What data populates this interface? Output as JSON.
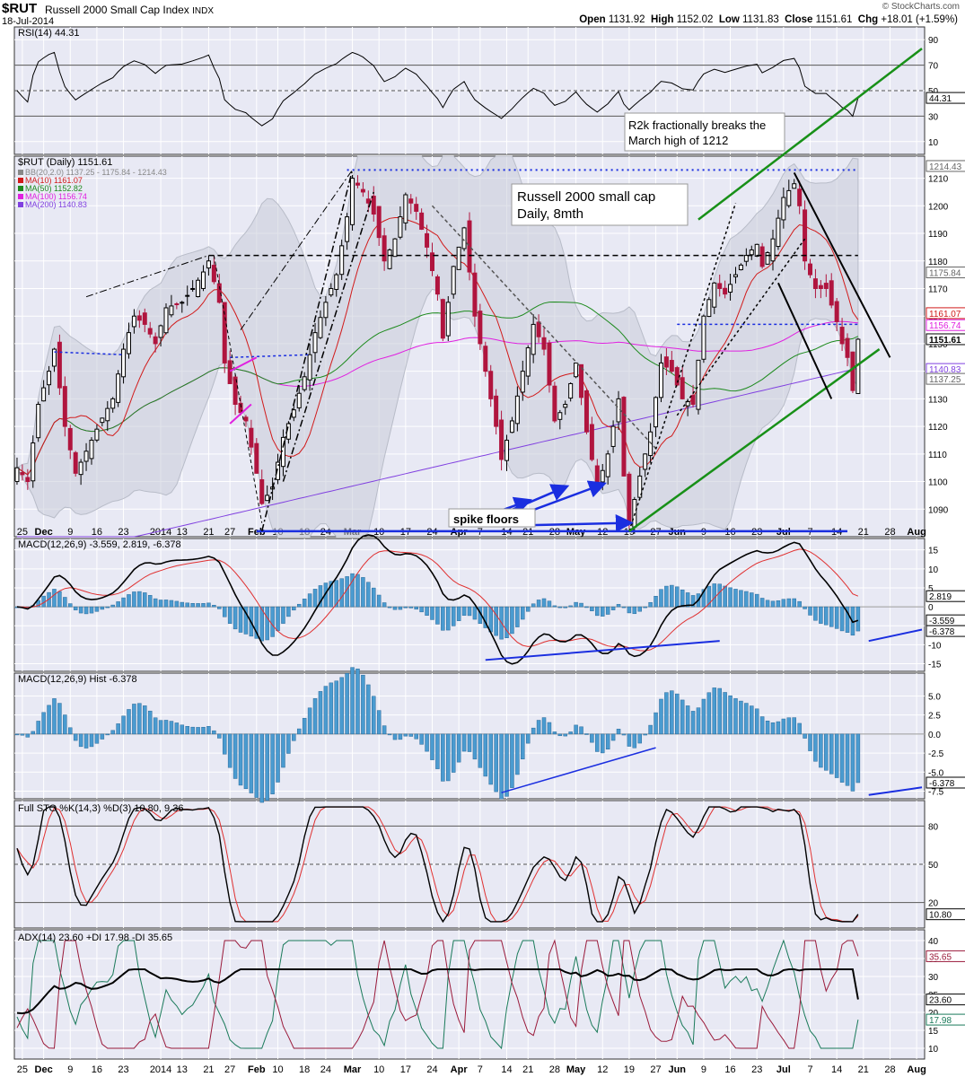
{
  "header": {
    "symbol": "$RUT",
    "name": "Russell 2000 Small Cap Index",
    "exchange": "INDX",
    "date": "18-Jul-2014",
    "open_label": "Open",
    "open": "1131.92",
    "high_label": "High",
    "high": "1152.02",
    "low_label": "Low",
    "low": "1131.83",
    "close_label": "Close",
    "close": "1151.61",
    "chg_label": "Chg",
    "chg": "+18.01 (+1.59%)",
    "watermark": "© StockCharts.com"
  },
  "colors": {
    "bg": "#ffffff",
    "panel_bg": "#e8e9f4",
    "grid": "#ffffff",
    "frame": "#333333",
    "candle_up": "#000000",
    "candle_down": "#b0153e",
    "ma10": "#d11a1a",
    "ma50": "#1d8a1d",
    "ma100": "#e020e0",
    "ma200": "#8040e0",
    "bb": "#c8ccd8",
    "hist": "#4a9bd0",
    "macd_line": "#000000",
    "signal": "#e03030",
    "adx_plus": "#1a7a5a",
    "adx_minus": "#9a1a3a",
    "annotation_blue": "#1a2ee0",
    "channel": "#189018",
    "black": "#000000"
  },
  "x_axis": {
    "labels": [
      {
        "i": 1,
        "t": "25"
      },
      {
        "i": 5,
        "t": "Dec"
      },
      {
        "i": 10,
        "t": "9"
      },
      {
        "i": 15,
        "t": "16"
      },
      {
        "i": 20,
        "t": "23"
      },
      {
        "i": 27,
        "t": "2014"
      },
      {
        "i": 31,
        "t": "13"
      },
      {
        "i": 36,
        "t": "21"
      },
      {
        "i": 40,
        "t": "27"
      },
      {
        "i": 45,
        "t": "Feb"
      },
      {
        "i": 49,
        "t": "10"
      },
      {
        "i": 54,
        "t": "18"
      },
      {
        "i": 58,
        "t": "24"
      },
      {
        "i": 63,
        "t": "Mar"
      },
      {
        "i": 68,
        "t": "10"
      },
      {
        "i": 73,
        "t": "17"
      },
      {
        "i": 78,
        "t": "24"
      },
      {
        "i": 83,
        "t": "Apr"
      },
      {
        "i": 87,
        "t": "7"
      },
      {
        "i": 92,
        "t": "14"
      },
      {
        "i": 96,
        "t": "21"
      },
      {
        "i": 101,
        "t": "28"
      },
      {
        "i": 105,
        "t": "May"
      },
      {
        "i": 110,
        "t": "12"
      },
      {
        "i": 115,
        "t": "19"
      },
      {
        "i": 120,
        "t": "27"
      },
      {
        "i": 124,
        "t": "Jun"
      },
      {
        "i": 129,
        "t": "9"
      },
      {
        "i": 134,
        "t": "16"
      },
      {
        "i": 139,
        "t": "23"
      },
      {
        "i": 144,
        "t": "Jul"
      },
      {
        "i": 149,
        "t": "7"
      },
      {
        "i": 154,
        "t": "14"
      },
      {
        "i": 159,
        "t": "21"
      },
      {
        "i": 164,
        "t": "28"
      },
      {
        "i": 169,
        "t": "Aug"
      }
    ]
  },
  "panels": {
    "rsi": {
      "legend": "RSI(14) 44.31",
      "ticks": [
        "90",
        "70",
        "50",
        "30",
        "10"
      ],
      "value_tag": "44.31"
    },
    "price": {
      "legend_title": "$RUT (Daily) 1151.61",
      "legend_items": [
        {
          "text": "BB(20,2.0) 1137.25 - 1175.84 - 1214.43",
          "color": "#888888"
        },
        {
          "text": "MA(10) 1161.07",
          "color": "#d11a1a"
        },
        {
          "text": "MA(50) 1152.82",
          "color": "#1d8a1d"
        },
        {
          "text": "MA(100) 1156.74",
          "color": "#e020e0"
        },
        {
          "text": "MA(200) 1140.83",
          "color": "#8040e0"
        }
      ],
      "ticks": [
        "1210",
        "1200",
        "1190",
        "1180",
        "1170",
        "1160",
        "1150",
        "1140",
        "1130",
        "1120",
        "1110",
        "1100",
        "1090"
      ],
      "value_tags": [
        {
          "v": 1214.43,
          "t": "1214.43"
        },
        {
          "v": 1175.84,
          "t": "1175.84"
        },
        {
          "v": 1161.07,
          "t": "1161.07"
        },
        {
          "v": 1156.74,
          "t": "1156.74"
        },
        {
          "v": 1151.61,
          "t": "1151.61",
          "bold": true
        },
        {
          "v": 1140.83,
          "t": "1140.83"
        },
        {
          "v": 1137.25,
          "t": "1137.25"
        }
      ],
      "annotations": {
        "note1_line1": "R2k fractionally breaks the",
        "note1_line2": "March high of 1212",
        "note2_line1": "Russell 2000 small cap",
        "note2_line2": "Daily, 8mth",
        "spike": "spike floors"
      }
    },
    "macd": {
      "legend": "MACD(12,26,9) -3.559, 2.819, -6.378",
      "ticks": [
        "15",
        "10",
        "5",
        "0",
        "-5",
        "-10",
        "-15"
      ],
      "value_tags": [
        {
          "v": 2.819,
          "t": "2.819"
        },
        {
          "v": -3.559,
          "t": "-3.559"
        },
        {
          "v": -6.378,
          "t": "-6.378"
        }
      ]
    },
    "hist": {
      "legend": "MACD(12,26,9) Hist -6.378",
      "ticks": [
        "5.0",
        "2.5",
        "0.0",
        "-2.5",
        "-5.0",
        "-7.5"
      ],
      "value_tag": "-6.378"
    },
    "sto": {
      "legend": "Full STO %K(14,3) %D(3) 10.80, 9.36",
      "ticks": [
        "80",
        "50",
        "20"
      ],
      "value_tag": "10.80"
    },
    "adx": {
      "legend": "ADX(14) 23.60 +DI 17.98 -DI 35.65",
      "ticks": [
        "40",
        "35",
        "30",
        "25",
        "20",
        "15",
        "10"
      ],
      "value_tags": [
        {
          "v": 35.65,
          "t": "35.65"
        },
        {
          "v": 23.6,
          "t": "23.60"
        },
        {
          "v": 17.98,
          "t": "17.98"
        }
      ]
    }
  },
  "chart_data": {
    "type": "candlestick",
    "title": "$RUT Russell 2000 Small Cap Index INDX (Daily)",
    "period": "approx. 22-Nov-2013 to 18-Jul-2014",
    "n_bars": 159,
    "price_ylim": [
      1080,
      1218
    ],
    "anchors_close": [
      [
        0,
        1105
      ],
      [
        2,
        1100
      ],
      [
        4,
        1128
      ],
      [
        6,
        1140
      ],
      [
        7,
        1148
      ],
      [
        9,
        1120
      ],
      [
        11,
        1103
      ],
      [
        14,
        1115
      ],
      [
        16,
        1123
      ],
      [
        18,
        1130
      ],
      [
        20,
        1148
      ],
      [
        22,
        1160
      ],
      [
        24,
        1157
      ],
      [
        26,
        1150
      ],
      [
        28,
        1163
      ],
      [
        31,
        1165
      ],
      [
        33,
        1170
      ],
      [
        35,
        1176
      ],
      [
        36,
        1180
      ],
      [
        38,
        1165
      ],
      [
        39,
        1143
      ],
      [
        41,
        1128
      ],
      [
        43,
        1122
      ],
      [
        45,
        1103
      ],
      [
        46,
        1092
      ],
      [
        48,
        1098
      ],
      [
        50,
        1116
      ],
      [
        52,
        1126
      ],
      [
        54,
        1138
      ],
      [
        56,
        1154
      ],
      [
        58,
        1165
      ],
      [
        60,
        1175
      ],
      [
        62,
        1196
      ],
      [
        63,
        1210
      ],
      [
        65,
        1205
      ],
      [
        67,
        1197
      ],
      [
        69,
        1180
      ],
      [
        71,
        1188
      ],
      [
        73,
        1204
      ],
      [
        75,
        1198
      ],
      [
        77,
        1185
      ],
      [
        79,
        1168
      ],
      [
        80,
        1152
      ],
      [
        82,
        1178
      ],
      [
        84,
        1192
      ],
      [
        86,
        1160
      ],
      [
        88,
        1140
      ],
      [
        90,
        1120
      ],
      [
        91,
        1108
      ],
      [
        93,
        1122
      ],
      [
        95,
        1140
      ],
      [
        97,
        1157
      ],
      [
        99,
        1148
      ],
      [
        101,
        1122
      ],
      [
        103,
        1128
      ],
      [
        105,
        1143
      ],
      [
        107,
        1118
      ],
      [
        109,
        1098
      ],
      [
        111,
        1110
      ],
      [
        113,
        1130
      ],
      [
        114,
        1102
      ],
      [
        115,
        1085
      ],
      [
        117,
        1102
      ],
      [
        119,
        1118
      ],
      [
        121,
        1143
      ],
      [
        123,
        1140
      ],
      [
        125,
        1130
      ],
      [
        127,
        1128
      ],
      [
        129,
        1160
      ],
      [
        131,
        1172
      ],
      [
        133,
        1168
      ],
      [
        135,
        1175
      ],
      [
        137,
        1182
      ],
      [
        139,
        1186
      ],
      [
        140,
        1178
      ],
      [
        142,
        1188
      ],
      [
        144,
        1203
      ],
      [
        146,
        1208
      ],
      [
        147,
        1200
      ],
      [
        148,
        1180
      ],
      [
        150,
        1170
      ],
      [
        152,
        1170
      ],
      [
        154,
        1158
      ],
      [
        155,
        1150
      ],
      [
        156,
        1145
      ],
      [
        157,
        1133
      ],
      [
        158,
        1152
      ]
    ],
    "last_bar": {
      "date": "18-Jul-2014",
      "open": 1131.92,
      "high": 1152.02,
      "low": 1131.83,
      "close": 1151.61
    },
    "indicators": {
      "MA(10)": 1161.07,
      "MA(50)": 1152.82,
      "MA(100)": 1156.74,
      "MA(200)": 1140.83,
      "BB(20,2.0)": [
        1137.25,
        1175.84,
        1214.43
      ],
      "RSI(14)": 44.31,
      "MACD(12,26,9)": {
        "macd": -3.559,
        "signal": 2.819,
        "hist": -6.378
      },
      "Full STO": {
        "k": 10.8,
        "d": 9.36
      },
      "ADX(14)": {
        "adx": 23.6,
        "plus_di": 17.98,
        "minus_di": 35.65
      }
    },
    "rsi_ylim": [
      0,
      100
    ],
    "macd_ylim": [
      -17,
      18
    ],
    "hist_ylim": [
      -8.5,
      8
    ],
    "sto_ylim": [
      0,
      100
    ],
    "adx_ylim": [
      7,
      43
    ]
  }
}
